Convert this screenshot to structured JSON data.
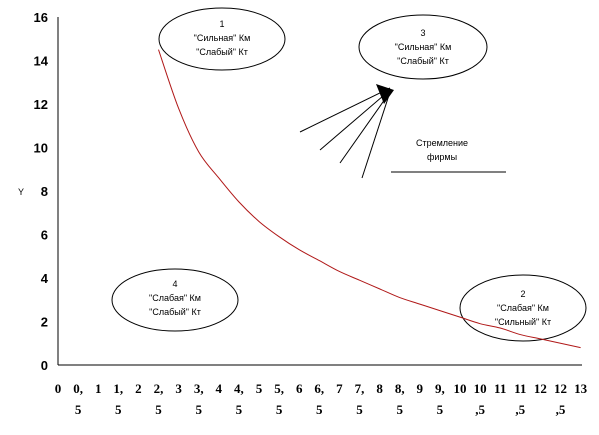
{
  "chart_data": {
    "type": "line",
    "title": "",
    "xlabel": "",
    "ylabel": "Y",
    "ylim": [
      0,
      16
    ],
    "yticks": [
      0,
      2,
      4,
      6,
      8,
      10,
      12,
      14,
      16
    ],
    "x_tick_labels": [
      [
        "0",
        ""
      ],
      [
        "0,",
        "5"
      ],
      [
        "1",
        ""
      ],
      [
        "1,",
        "5"
      ],
      [
        "2",
        ""
      ],
      [
        "2,",
        "5"
      ],
      [
        "3",
        ""
      ],
      [
        "3,",
        "5"
      ],
      [
        "4",
        ""
      ],
      [
        "4,",
        "5"
      ],
      [
        "5",
        ""
      ],
      [
        "5,",
        "5"
      ],
      [
        "6",
        ""
      ],
      [
        "6,",
        "5"
      ],
      [
        "7",
        ""
      ],
      [
        "7,",
        "5"
      ],
      [
        "8",
        ""
      ],
      [
        "8,",
        "5"
      ],
      [
        "9",
        ""
      ],
      [
        "9,",
        "5"
      ],
      [
        "10",
        ""
      ],
      [
        "10",
        ",5"
      ],
      [
        "11",
        ""
      ],
      [
        "11",
        ",5"
      ],
      [
        "12",
        ""
      ],
      [
        "12",
        ",5"
      ],
      [
        "13",
        ""
      ]
    ],
    "series": [
      {
        "color": "#b01818",
        "x": [
          2.5,
          3,
          3.5,
          4,
          4.5,
          5,
          5.5,
          6,
          6.5,
          7,
          7.5,
          8,
          8.5,
          9,
          9.5,
          10,
          10.5,
          11,
          11.5,
          12,
          12.5,
          13
        ],
        "y": [
          14.5,
          11.8,
          9.8,
          8.6,
          7.5,
          6.6,
          5.9,
          5.3,
          4.8,
          4.3,
          3.9,
          3.5,
          3.1,
          2.8,
          2.5,
          2.2,
          1.9,
          1.7,
          1.4,
          1.2,
          1.0,
          0.8
        ]
      }
    ],
    "annotations": [
      {
        "id": "zone-1",
        "lines": [
          "1",
          "\"Сильная\" Км",
          "\"Слабый\" Кт"
        ]
      },
      {
        "id": "zone-2",
        "lines": [
          "2",
          "\"Слабая\" Км",
          "\"Сильный\" Кт"
        ]
      },
      {
        "id": "zone-3",
        "lines": [
          "3",
          "\"Сильная\" Км",
          "\"Слабый\" Кт"
        ]
      },
      {
        "id": "zone-4",
        "lines": [
          "4",
          "\"Слабая\" Км",
          "\"Слабый\"  Кт"
        ]
      },
      {
        "id": "firm-aspiration",
        "lines": [
          "Стремление",
          "фирмы"
        ]
      }
    ]
  }
}
